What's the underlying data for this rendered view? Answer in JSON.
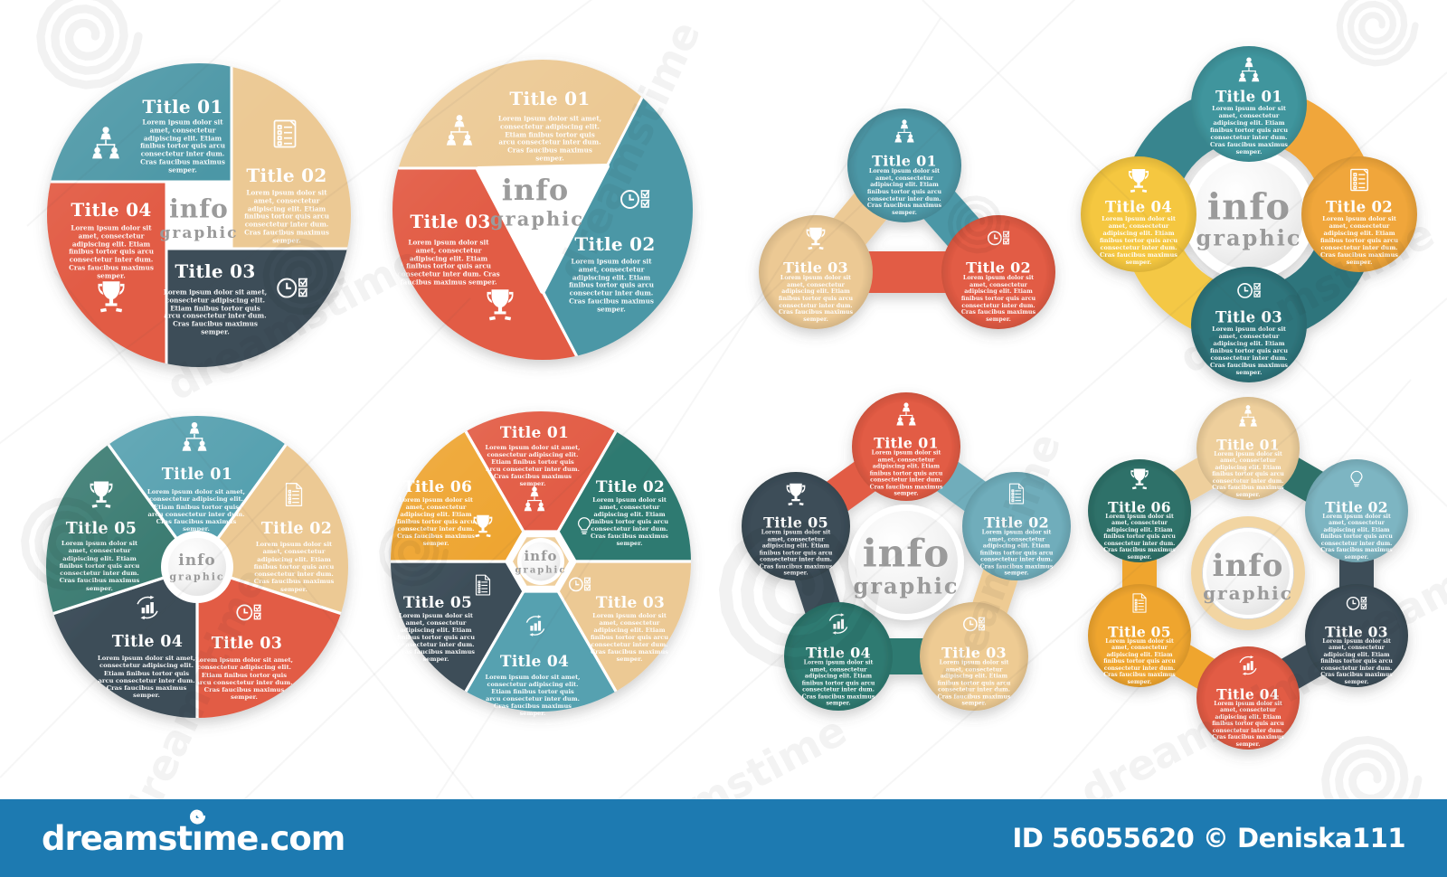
{
  "image": {
    "kind": "stock infographic template set",
    "background": "#ffffff"
  },
  "shared": {
    "center_title": "info",
    "center_subtitle": "graphic",
    "body_text": "Lorem ipsum dolor sit amet, consectetur adipiscing elit. Etiam finibus tortor quis arcu consectetur inter dum. Cras faucibus maximus semper."
  },
  "infographics": [
    {
      "name": "circle-infographic-4-segments",
      "has_center_label": true,
      "sections": [
        {
          "label": "Title 01",
          "icon": "org-people",
          "color": "#4C97A6"
        },
        {
          "label": "Title 02",
          "icon": "doc-check",
          "color": "#ECC994"
        },
        {
          "label": "Title 03",
          "icon": "clock-checks",
          "color": "#3C4D58"
        },
        {
          "label": "Title 04",
          "icon": "trophy",
          "color": "#E25B44"
        }
      ]
    },
    {
      "name": "circle-infographic-3-segments",
      "has_center_label": true,
      "sections": [
        {
          "label": "Title 01",
          "icon": "org-people",
          "color": "#ECC994"
        },
        {
          "label": "Title 02",
          "icon": "clock-checks",
          "color": "#4C97A6"
        },
        {
          "label": "Title 03",
          "icon": "trophy",
          "color": "#E25B44"
        }
      ]
    },
    {
      "name": "molecule-infographic-3-circles",
      "has_center_label": false,
      "sections": [
        {
          "label": "Title 01",
          "icon": "org-people",
          "color": "#4C97A6"
        },
        {
          "label": "Title 02",
          "icon": "clock-checks",
          "color": "#E25B44"
        },
        {
          "label": "Title 03",
          "icon": "trophy",
          "color": "#ECC994"
        }
      ]
    },
    {
      "name": "clover-infographic-4-circles",
      "has_center_label": true,
      "ribbon_colors": [
        "#37858E",
        "#F0A63A",
        "#2E747B",
        "#F4C844"
      ],
      "sections": [
        {
          "label": "Title 01",
          "icon": "org-people",
          "color": "#3F959D"
        },
        {
          "label": "Title 02",
          "icon": "doc-check",
          "color": "#F0A63A"
        },
        {
          "label": "Title 03",
          "icon": "clock-checks",
          "color": "#2E747B"
        },
        {
          "label": "Title 04",
          "icon": "trophy",
          "color": "#F5C73F"
        }
      ]
    },
    {
      "name": "circle-infographic-5-segments",
      "has_center_label": true,
      "sections": [
        {
          "label": "Title 01",
          "icon": "org-people",
          "color": "#57A1B0"
        },
        {
          "label": "Title 02",
          "icon": "doc-lines",
          "color": "#ECC994"
        },
        {
          "label": "Title 03",
          "icon": "clock-checks",
          "color": "#E25B44"
        },
        {
          "label": "Title 04",
          "icon": "chart-circle",
          "color": "#3C4D58"
        },
        {
          "label": "Title 05",
          "icon": "trophy",
          "color": "#3A7B71"
        }
      ]
    },
    {
      "name": "circle-infographic-6-segments",
      "has_center_label": true,
      "hex_color": "#EFCF9D",
      "sections": [
        {
          "label": "Title 01",
          "icon": "org-people",
          "color": "#E25B44"
        },
        {
          "label": "Title 02",
          "icon": "bulb",
          "color": "#2F7A71"
        },
        {
          "label": "Title 03",
          "icon": "clock-checks",
          "color": "#ECC994"
        },
        {
          "label": "Title 04",
          "icon": "chart-circle",
          "color": "#57A1B0"
        },
        {
          "label": "Title 05",
          "icon": "doc-lines",
          "color": "#3C4D58"
        },
        {
          "label": "Title 06",
          "icon": "trophy",
          "color": "#EEA42F"
        }
      ]
    },
    {
      "name": "molecule-infographic-5-circles",
      "has_center_label": true,
      "sections": [
        {
          "label": "Title 01",
          "icon": "org-people",
          "color": "#E25B44"
        },
        {
          "label": "Title 02",
          "icon": "doc-lines",
          "color": "#6FADBB"
        },
        {
          "label": "Title 03",
          "icon": "clock-checks",
          "color": "#EECB93"
        },
        {
          "label": "Title 04",
          "icon": "chart-circle",
          "color": "#2F7A71"
        },
        {
          "label": "Title 05",
          "icon": "trophy",
          "color": "#3C4D58"
        }
      ]
    },
    {
      "name": "molecule-infographic-6-circles",
      "has_center_label": true,
      "ring_color": "#F2D5A2",
      "sections": [
        {
          "label": "Title 01",
          "icon": "org-people",
          "color": "#EECF9C"
        },
        {
          "label": "Title 02",
          "icon": "bulb",
          "color": "#7DB5C2"
        },
        {
          "label": "Title 03",
          "icon": "clock-checks",
          "color": "#3C4D58"
        },
        {
          "label": "Title 04",
          "icon": "chart-circle",
          "color": "#E25B44"
        },
        {
          "label": "Title 05",
          "icon": "doc-lines",
          "color": "#EFA52F"
        },
        {
          "label": "Title 06",
          "icon": "trophy",
          "color": "#2E7169"
        }
      ]
    }
  ],
  "watermark": {
    "ghost_text": "dreamstime"
  },
  "footer": {
    "background": "#1D7AB1",
    "site": "dreamstime.com",
    "credit": "ID 56055620 © Deniska111"
  }
}
